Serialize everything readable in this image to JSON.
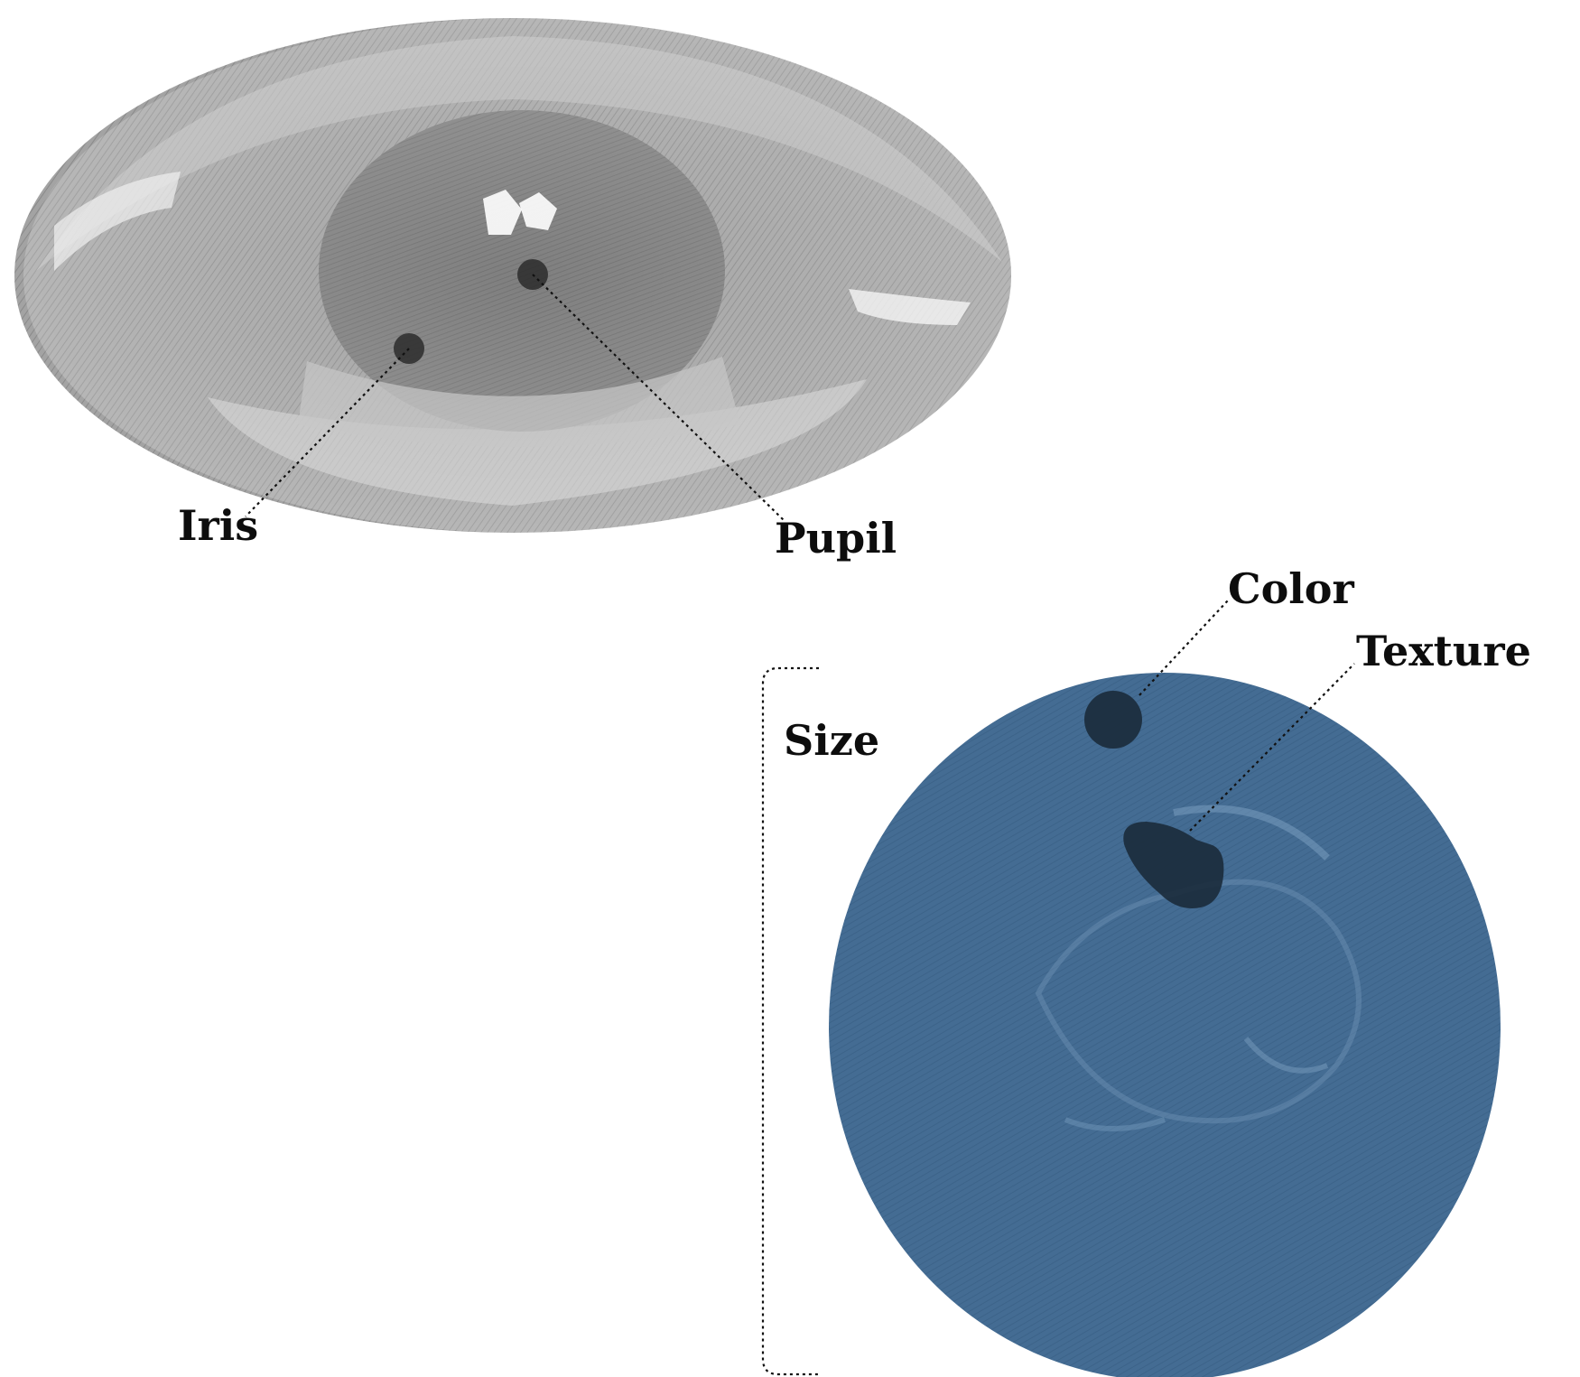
{
  "eye_labels": {
    "iris": "Iris",
    "pupil": "Pupil"
  },
  "iris_labels": {
    "color": "Color",
    "texture": "Texture",
    "size": "Size"
  },
  "colors": {
    "eye_gray": "#9d9d9d",
    "iris_blue": "#436b92",
    "marker_dark": "#2b2b2b",
    "marker_navy": "#1b2b3b",
    "text": "#0d0d0d"
  }
}
